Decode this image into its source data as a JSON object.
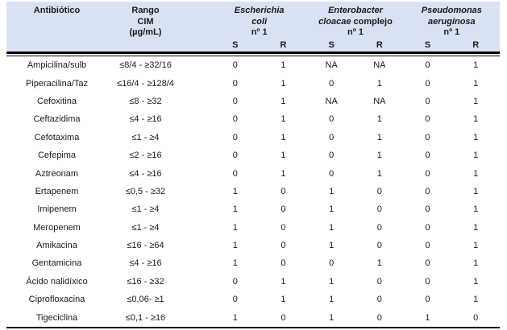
{
  "table": {
    "colors": {
      "header_bg": "#d9e2f3",
      "text": "#1a1a1a",
      "border": "#000000"
    },
    "header": {
      "col_antibiotic": "Antibiótico",
      "col_range_lines": [
        "Rango",
        "CIM",
        "(µg/mL)"
      ],
      "organisms": [
        {
          "line1": "Escherichia",
          "line2_italic": "coli",
          "line2_normal": "",
          "line3": "nº 1"
        },
        {
          "line1": "Enterobacter",
          "line2_italic": "cloacae",
          "line2_normal": "complejo",
          "line3": "nº 1"
        },
        {
          "line1": "Pseudomonas",
          "line2_italic": "aeruginosa",
          "line2_normal": "",
          "line3": "nº 1"
        }
      ],
      "sr_labels": [
        "S",
        "R",
        "S",
        "R",
        "S",
        "R"
      ]
    },
    "rows": [
      {
        "name": "Ampicilina/sulb",
        "range": "≤8/4 - ≥32/16",
        "values": [
          "0",
          "1",
          "NA",
          "NA",
          "0",
          "1"
        ]
      },
      {
        "name": "Piperacilina/Taz",
        "range": "≤16/4 - ≥128/4",
        "values": [
          "0",
          "1",
          "0",
          "1",
          "0",
          "1"
        ]
      },
      {
        "name": "Cefoxitina",
        "range": "≤8 - ≥32",
        "values": [
          "0",
          "1",
          "NA",
          "NA",
          "0",
          "1"
        ]
      },
      {
        "name": "Ceftazidima",
        "range": "≤4 - ≥16",
        "values": [
          "0",
          "1",
          "0",
          "1",
          "0",
          "1"
        ]
      },
      {
        "name": "Cefotaxima",
        "range": "≤1 - ≥4",
        "values": [
          "0",
          "1",
          "0",
          "1",
          "0",
          "1"
        ]
      },
      {
        "name": "Cefepima",
        "range": "≤2 - ≥16",
        "values": [
          "0",
          "1",
          "0",
          "1",
          "0",
          "1"
        ]
      },
      {
        "name": "Aztreonam",
        "range": "≤4 - ≥16",
        "values": [
          "0",
          "1",
          "0",
          "1",
          "0",
          "1"
        ]
      },
      {
        "name": "Ertapenem",
        "range": "≤0,5 - ≥32",
        "values": [
          "1",
          "0",
          "1",
          "0",
          "0",
          "1"
        ]
      },
      {
        "name": "Imipenem",
        "range": "≤1 - ≥4",
        "values": [
          "1",
          "0",
          "1",
          "0",
          "0",
          "1"
        ]
      },
      {
        "name": "Meropenem",
        "range": "≤1 - ≥4",
        "values": [
          "1",
          "0",
          "1",
          "0",
          "0",
          "1"
        ]
      },
      {
        "name": "Amikacina",
        "range": "≤16 - ≥64",
        "values": [
          "1",
          "0",
          "1",
          "0",
          "0",
          "1"
        ]
      },
      {
        "name": "Gentamicina",
        "range": "≤4 - ≥16",
        "values": [
          "1",
          "0",
          "0",
          "1",
          "0",
          "1"
        ]
      },
      {
        "name": "Ácido nalidíxico",
        "range": "≤16 - ≥32",
        "values": [
          "0",
          "1",
          "1",
          "0",
          "0",
          "1"
        ]
      },
      {
        "name": "Ciprofloxacina",
        "range": "≤0,06- ≥1",
        "values": [
          "0",
          "1",
          "1",
          "0",
          "0",
          "1"
        ]
      },
      {
        "name": "Tigeciclina",
        "range": "≤0,1 - ≥16",
        "values": [
          "1",
          "0",
          "1",
          "0",
          "1",
          "0"
        ]
      }
    ]
  }
}
